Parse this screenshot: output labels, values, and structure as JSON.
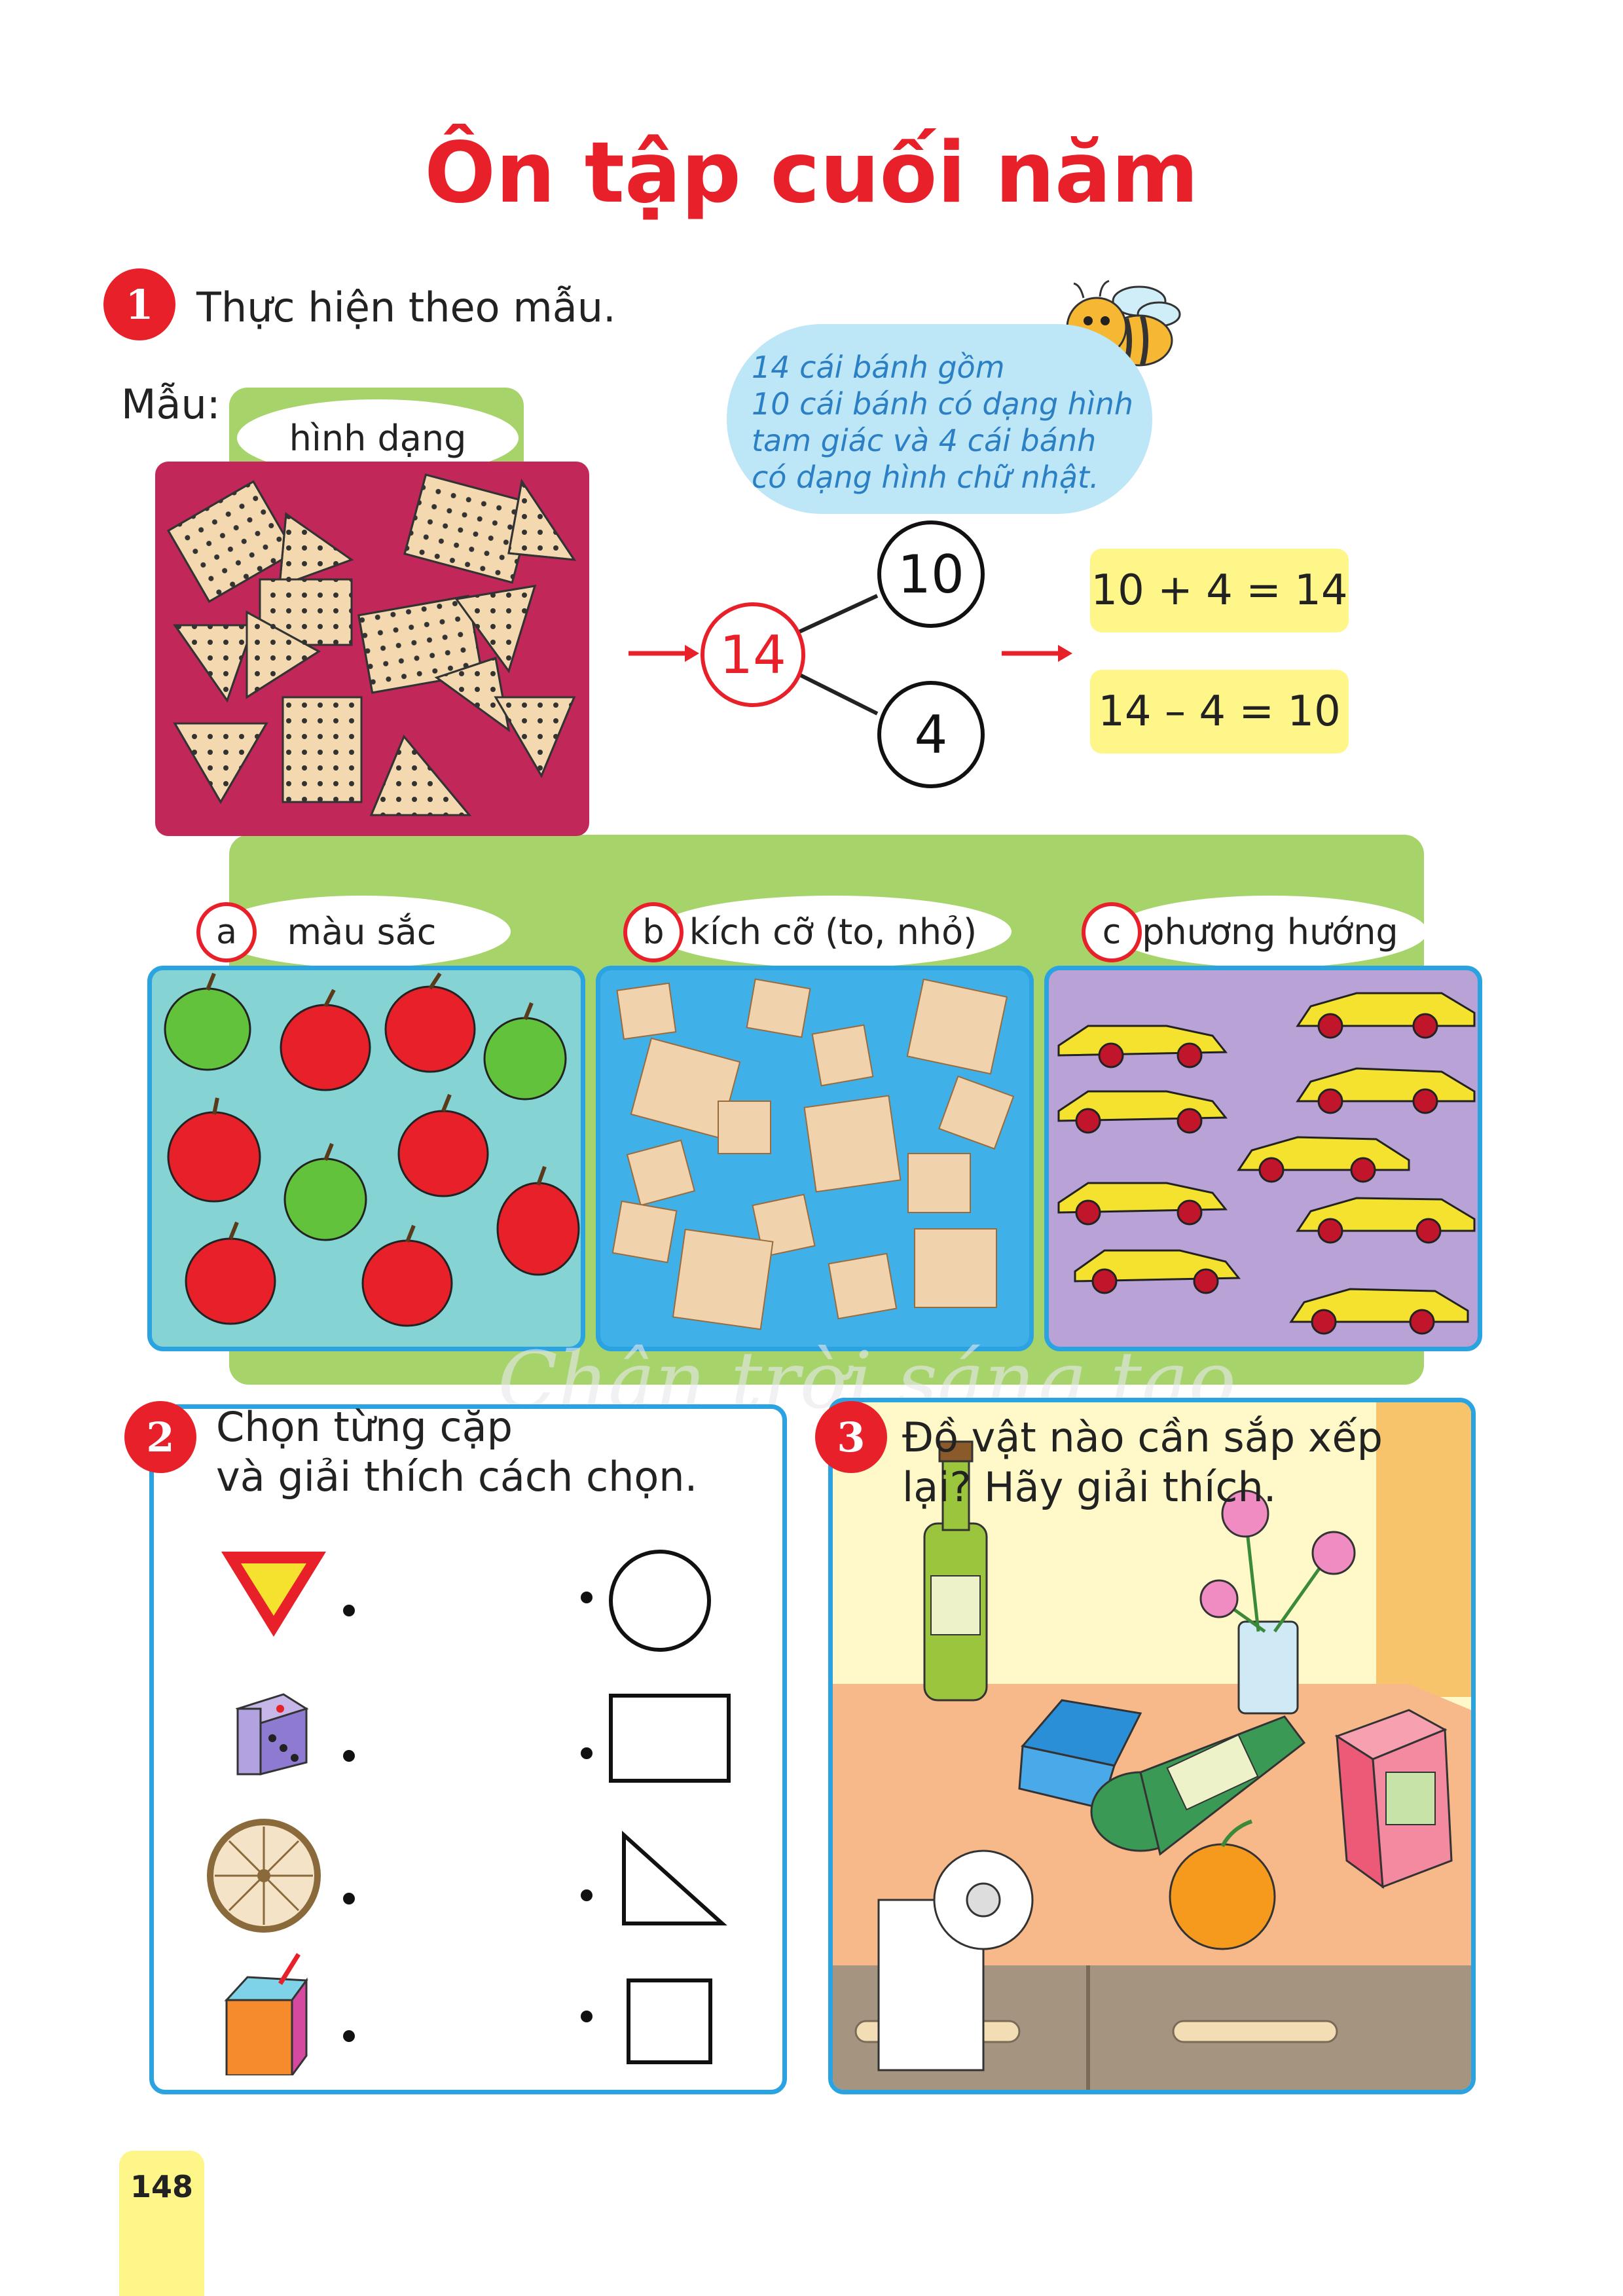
{
  "page": {
    "title": "Ôn tập cuối năm",
    "page_number": "148",
    "watermark": "Chân trời sáng tạo"
  },
  "exercise1": {
    "number": "1",
    "instruction": "Thực hiện theo mẫu.",
    "sample_label": "Mẫu:",
    "sample_tag": "hình dạng",
    "bubble_text": [
      "14 cái bánh gồm",
      "10 cái bánh có dạng hình",
      "tam giác và 4 cái bánh",
      "có dạng hình chữ nhật."
    ],
    "diagram": {
      "whole": "14",
      "part1": "10",
      "part2": "4"
    },
    "equations": [
      "10 + 4 = 14",
      "14 – 4 = 10"
    ],
    "parts": [
      {
        "letter": "a",
        "label": "màu sắc"
      },
      {
        "letter": "b",
        "label": "kích cỡ (to, nhỏ)"
      },
      {
        "letter": "c",
        "label": "phương hướng"
      }
    ]
  },
  "exercise2": {
    "number": "2",
    "instruction": [
      "Chọn từng cặp",
      "và giải thích cách chọn."
    ],
    "left_items": [
      "triangle-sign-icon",
      "dice-icon",
      "wheel-icon",
      "juice-box-icon"
    ],
    "right_items": [
      "circle-shape",
      "rectangle-shape",
      "triangle-shape",
      "square-shape"
    ]
  },
  "exercise3": {
    "number": "3",
    "instruction": [
      "Đồ vật nào cần sắp xếp",
      "lại? Hãy giải thích."
    ]
  },
  "colors": {
    "title_red": "#e8202a",
    "green_panel": "#a6d46a",
    "crimson_panel": "#c2275a",
    "teal_panel": "#86d3d4",
    "blue_panel": "#3fb0e8",
    "purple_panel": "#b9a2d6",
    "eq_yellow": "#fff68a",
    "panel_border": "#2aa3e0"
  }
}
